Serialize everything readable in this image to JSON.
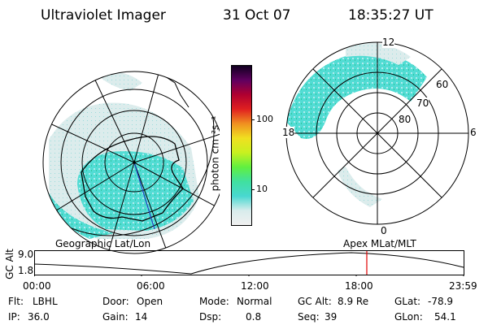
{
  "header": {
    "title": "Ultraviolet Imager",
    "date": "31 Oct 07",
    "time": "18:35:27 UT"
  },
  "colorbar": {
    "unit_label": "photon cm⁻²s⁻¹",
    "ticks": [
      "100",
      "10"
    ],
    "stops": [
      "#f0f0f0",
      "#d8ecec",
      "#48d8d0",
      "#40e0a0",
      "#60f040",
      "#c8f020",
      "#f0e020",
      "#f09020",
      "#e02020",
      "#b00030",
      "#600060",
      "#100020"
    ]
  },
  "left_map": {
    "caption": "Geographic Lat/Lon"
  },
  "right_map": {
    "caption": "Apex MLat/MLT",
    "mlt_labels": {
      "top": "12",
      "bottom": "0",
      "left": "18",
      "right": "6"
    },
    "lat_labels": [
      "60",
      "70",
      "80"
    ]
  },
  "altitude_plot": {
    "ylabel": "GC Alt",
    "ymax": "9.0",
    "ymin": "1.8",
    "current_time_hours": 18.59,
    "time_ticks": [
      "00:00",
      "06:00",
      "12:00",
      "18:00",
      "23:59"
    ]
  },
  "status": {
    "flt_label": "Flt:",
    "flt_value": "LBHL",
    "ip_label": "IP:",
    "ip_value": "36.0",
    "door_label": "Door:",
    "door_value": "Open",
    "gain_label": "Gain:",
    "gain_value": "14",
    "mode_label": "Mode:",
    "mode_value": "Normal",
    "dsp_label": "Dsp:",
    "dsp_value": "0.8",
    "gcalt_label": "GC Alt:",
    "gcalt_value": "8.9 Re",
    "seq_label": "Seq:",
    "seq_value": "39",
    "glat_label": "GLat:",
    "glat_value": "-78.9",
    "glon_label": "GLon:",
    "glon_value": "54.1"
  },
  "colors": {
    "aurora": "#48d8d0",
    "marker": "#e00000",
    "land": "#000000"
  }
}
